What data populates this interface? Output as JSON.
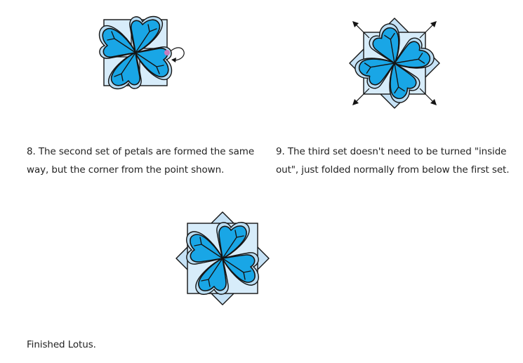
{
  "steps": [
    {
      "id": "step-8",
      "caption": "8. The second set of petals are formed the same way, but the corner from the point shown.",
      "marker_color": "#c77dbd"
    },
    {
      "id": "step-9",
      "caption": "9. The third set doesn't need to be turned \"inside out\", just folded normally from below the first set."
    },
    {
      "id": "finished",
      "caption": "Finished Lotus."
    }
  ],
  "colors": {
    "petal": "#19a6e6",
    "petal_rim": "#b9dcf2",
    "paper_light": "#d7ecfa",
    "paper_mid": "#c6e2f6",
    "outline": "#141414"
  }
}
